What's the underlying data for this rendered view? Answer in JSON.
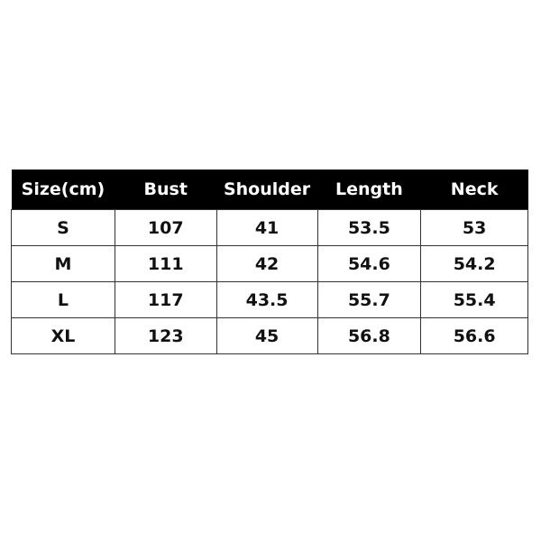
{
  "table": {
    "headers": [
      "Size(cm)",
      "Bust",
      "Shoulder",
      "Length",
      "Neck"
    ],
    "rows": [
      [
        "S",
        "107",
        "41",
        "53.5",
        "53"
      ],
      [
        "M",
        "111",
        "42",
        "54.6",
        "54.2"
      ],
      [
        "L",
        "117",
        "43.5",
        "55.7",
        "55.4"
      ],
      [
        "XL",
        "123",
        "45",
        "56.8",
        "56.6"
      ]
    ]
  }
}
